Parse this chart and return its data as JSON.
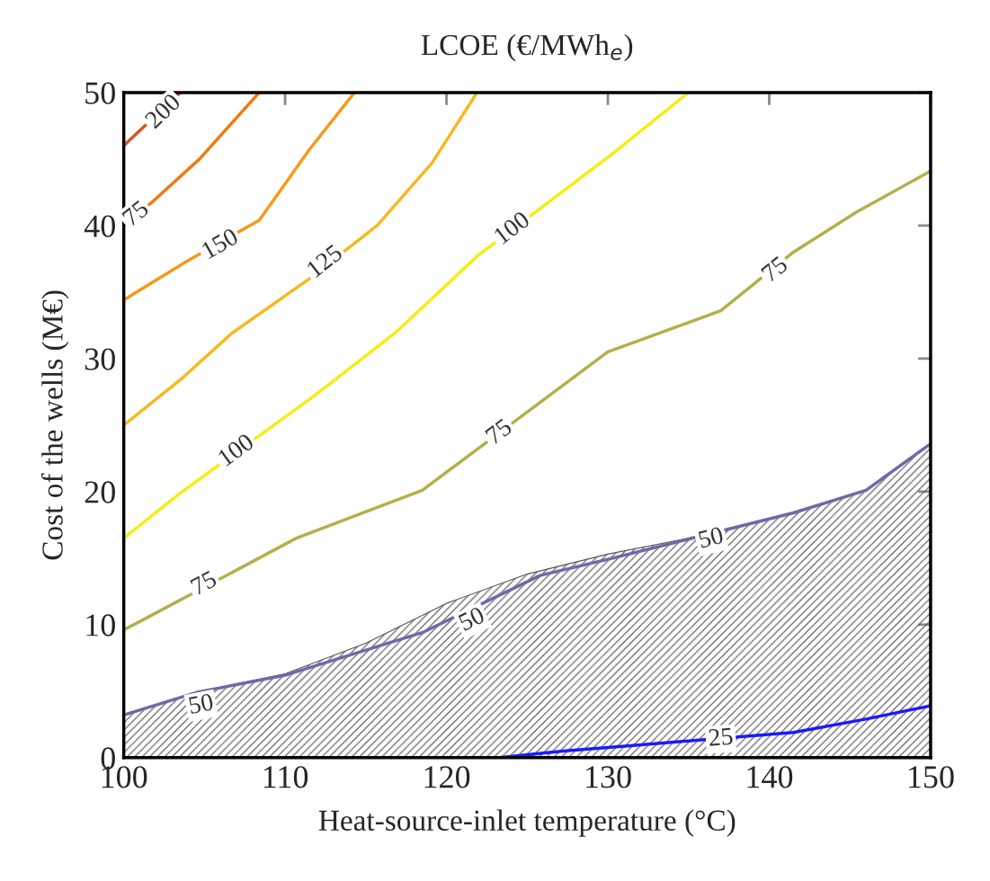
{
  "chart_data": {
    "type": "line",
    "title": "LCOE (€/MWh$_{e}$)",
    "xlabel": "Heat-source-inlet temperature (°C)",
    "ylabel": "Cost of the wells (M€)",
    "xlim": [
      100,
      150
    ],
    "ylim": [
      0,
      50
    ],
    "xticks": [
      100,
      110,
      120,
      130,
      140,
      150
    ],
    "yticks": [
      0,
      10,
      20,
      30,
      40,
      50
    ],
    "grid": false,
    "legend": false,
    "line_style": "solid",
    "marker": "none",
    "series": [
      {
        "type": "area",
        "color": "#555555",
        "x": [
          100,
          104.5,
          110,
          115,
          120,
          125,
          130,
          135,
          141.5,
          146,
          150
        ],
        "values": [
          3.2,
          4.9,
          6.3,
          8.6,
          11.6,
          13.8,
          15.3,
          16.5,
          18.4,
          20.1,
          23.6
        ]
      },
      {
        "color": "#d9541a",
        "x": [
          100,
          103.5
        ],
        "values": [
          46,
          50
        ]
      },
      {
        "color": "#f07a10",
        "x": [
          100,
          101.7,
          104.7,
          108.4
        ],
        "values": [
          40,
          41.7,
          45,
          50
        ]
      },
      {
        "color": "#f59a1a",
        "x": [
          100,
          103.9,
          108.4,
          111.5,
          114.3
        ],
        "values": [
          34.4,
          37.3,
          40.4,
          45.7,
          50
        ]
      },
      {
        "color": "#f7b820",
        "x": [
          100,
          103.6,
          106.7,
          111.5,
          115.7,
          119.1,
          121.9
        ],
        "values": [
          25,
          28.5,
          31.9,
          36,
          40,
          44.7,
          50
        ]
      },
      {
        "color": "#f5ee10",
        "x": [
          100,
          103.4,
          111.8,
          116.8,
          121.9,
          130.3,
          135
        ],
        "values": [
          16.5,
          19.8,
          27.2,
          31.9,
          37.7,
          45.4,
          50
        ]
      },
      {
        "color": "#b3b04a",
        "x": [
          100,
          101.1,
          110.7,
          118.5,
          130,
          137,
          141.5,
          145.4,
          150
        ],
        "values": [
          9.6,
          10.3,
          16.5,
          20.1,
          30.5,
          33.6,
          38,
          41,
          44.1
        ]
      },
      {
        "color": "#6b6ba8",
        "x": [
          100,
          104.5,
          110,
          118.5,
          125.8,
          130.3,
          141.5,
          146,
          150
        ],
        "values": [
          3.2,
          4.9,
          6.2,
          9.4,
          13.7,
          15,
          18.4,
          20.1,
          23.6
        ]
      },
      {
        "color": "#1a1aff",
        "x": [
          123.3,
          127.2,
          131.4,
          141.5,
          146,
          150
        ],
        "values": [
          0,
          0.5,
          0.9,
          1.9,
          2.9,
          3.9
        ]
      }
    ],
    "annotations": [
      {
        "text": "200",
        "x": 102.5,
        "y": 48.5
      },
      {
        "text": "75",
        "x": 100.8,
        "y": 40.8
      },
      {
        "text": "150",
        "x": 106,
        "y": 38.5
      },
      {
        "text": "125",
        "x": 112.5,
        "y": 37.2
      },
      {
        "text": "100",
        "x": 107,
        "y": 23
      },
      {
        "text": "100",
        "x": 124.1,
        "y": 39.7
      },
      {
        "text": "75",
        "x": 105,
        "y": 13
      },
      {
        "text": "75",
        "x": 123.3,
        "y": 24.4
      },
      {
        "text": "75",
        "x": 140.4,
        "y": 36.6
      },
      {
        "text": "50",
        "x": 104.8,
        "y": 3.9
      },
      {
        "text": "50",
        "x": 121.6,
        "y": 10.3
      },
      {
        "text": "50",
        "x": 136.4,
        "y": 16.4
      },
      {
        "text": "25",
        "x": 137,
        "y": 1.4
      }
    ]
  }
}
